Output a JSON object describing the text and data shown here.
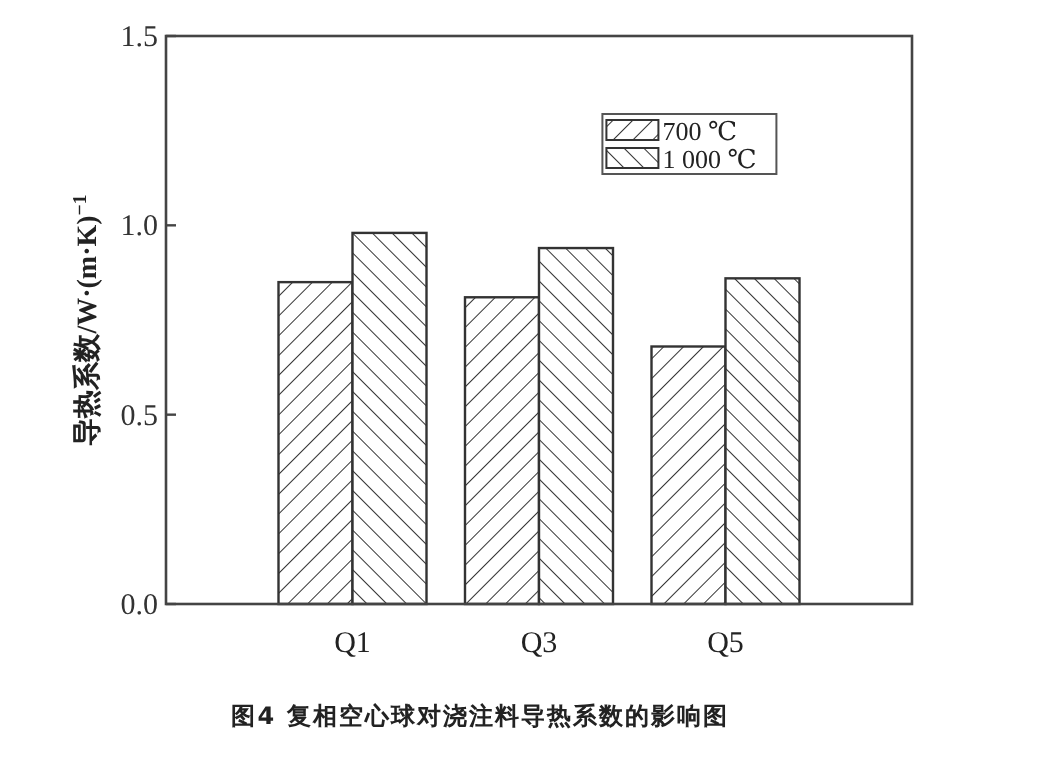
{
  "chart_data": {
    "type": "bar",
    "ylabel": "导热系数/W·(m·K)$^{−1}$",
    "annotations": [
      "图4  复相空心球对浇注料导热系数的影响图"
    ],
    "categories": [
      "Q1",
      "Q3",
      "Q5"
    ],
    "series": [
      {
        "name": "700 ℃",
        "color": "#333333",
        "values": [
          0.85,
          0.81,
          0.68
        ]
      },
      {
        "name": "1 000 ℃",
        "color": "#333333",
        "values": [
          0.98,
          0.94,
          0.86
        ]
      }
    ],
    "ylim": [
      0,
      1.5
    ],
    "yticks": [
      {
        "value": 0,
        "label": "0.0"
      },
      0.5,
      {
        "value": 1,
        "label": "1.0"
      },
      1.5
    ],
    "grid": false,
    "legend": "top right"
  }
}
